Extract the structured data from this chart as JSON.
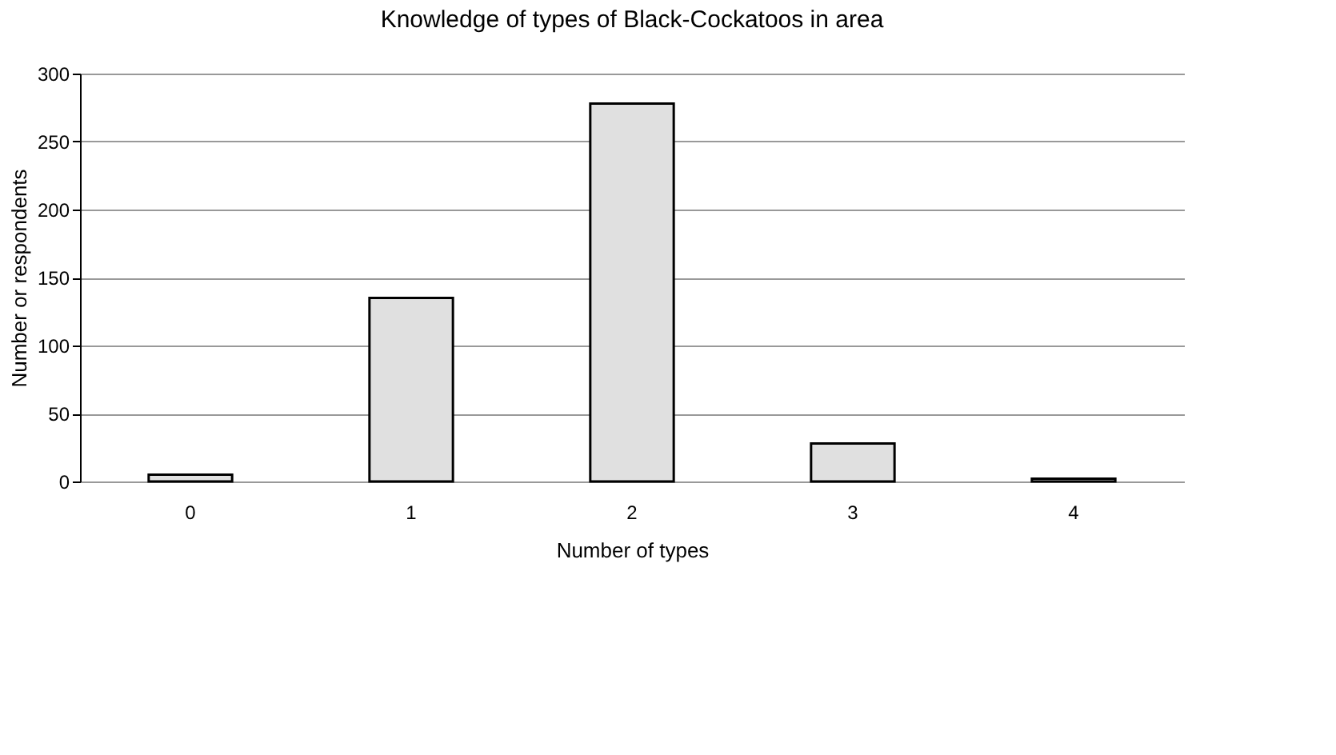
{
  "chart_data": {
    "type": "bar",
    "title": "Knowledge of types of Black-Cockatoos in area",
    "categories": [
      "0",
      "1",
      "2",
      "3",
      "4"
    ],
    "values": [
      5,
      135,
      278,
      28,
      2
    ],
    "color": "#e0e0e0",
    "xlabel": "Number of types",
    "ylabel": "Number or respondents",
    "ylim": [
      0,
      300
    ],
    "yticks": [
      0,
      50,
      100,
      150,
      200,
      250,
      300
    ],
    "grid": "y"
  }
}
